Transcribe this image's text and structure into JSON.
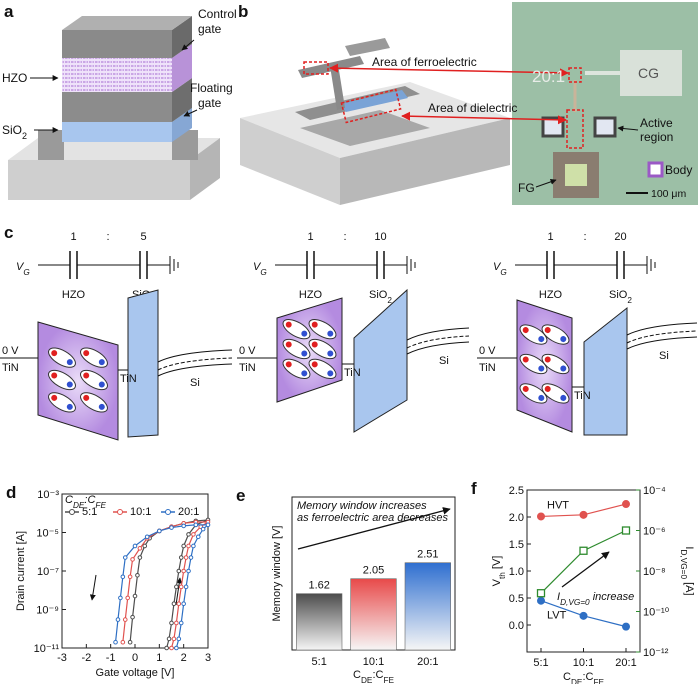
{
  "panels": {
    "a": {
      "letter": "a",
      "control_gate": [
        "Control",
        "gate"
      ],
      "hzo": "HZO",
      "floating_gate": [
        "Floating",
        "gate"
      ],
      "sio2": [
        "SiO",
        "2"
      ]
    },
    "b": {
      "letter": "b",
      "ferroelectric": "Area of ferroelectric",
      "dielectric": "Area of dielectric",
      "ratio": "20:1",
      "cg": "CG",
      "active_region": [
        "Active",
        "region"
      ],
      "body": "Body",
      "fg": "FG",
      "scale_bar": "100 μm"
    },
    "c": {
      "letter": "c",
      "columns": [
        {
          "vg": [
            "V",
            "G"
          ],
          "left": "1",
          "colon": ":",
          "right": "5",
          "hzo": "HZO",
          "sio2": [
            "SiO",
            "2"
          ],
          "zero_v": "0 V",
          "tin_left": "TiN",
          "tin_mid": "TiN",
          "si": "Si"
        },
        {
          "vg": [
            "V",
            "G"
          ],
          "left": "1",
          "colon": ":",
          "right": "10",
          "hzo": "HZO",
          "sio2": [
            "SiO",
            "2"
          ],
          "zero_v": "0 V",
          "tin_left": "TiN",
          "tin_mid": "TiN",
          "si": "Si"
        },
        {
          "vg": [
            "V",
            "G"
          ],
          "left": "1",
          "colon": ":",
          "right": "20",
          "hzo": "HZO",
          "sio2": [
            "SiO",
            "2"
          ],
          "zero_v": "0 V",
          "tin_left": "TiN",
          "tin_mid": "TiN",
          "si": "Si"
        }
      ]
    }
  },
  "chart_data": [
    {
      "type": "line",
      "panel_label": "d",
      "x_label": "Gate voltage [V]",
      "y_label": "Drain current [A]",
      "legend_title": [
        "C",
        "DE",
        ":C",
        "FE"
      ],
      "log_y": true,
      "xlim": [
        -3,
        3
      ],
      "xticks": [
        -3,
        -2,
        -1,
        0,
        1,
        2,
        3
      ],
      "ylim": [
        1e-11,
        0.001
      ],
      "yticks": [
        {
          "value": 1e-11,
          "label": "10⁻¹¹"
        },
        {
          "value": 1e-09,
          "label": "10⁻⁹"
        },
        {
          "value": 1e-07,
          "label": "10⁻⁷"
        },
        {
          "value": 1e-05,
          "label": "10⁻⁵"
        },
        {
          "value": 0.001,
          "label": "10⁻³"
        }
      ],
      "series": [
        {
          "name": "5:1",
          "color": "#4d4d4d",
          "x": [
            1.3,
            1.4,
            1.5,
            1.6,
            1.7,
            1.8,
            1.9,
            2.0,
            2.2,
            2.5,
            3.0,
            2.5,
            2.0,
            1.5,
            1.0,
            0.6,
            0.4,
            0.2,
            0.1,
            0.0,
            -0.1,
            -0.2
          ],
          "values": [
            1e-11,
            3e-11,
            2e-10,
            2e-09,
            1.5e-08,
            1e-07,
            5e-07,
            2e-06,
            8e-06,
            2.5e-05,
            4.5e-05,
            4e-05,
            3e-05,
            2e-05,
            1.2e-05,
            5e-06,
            2e-06,
            5e-07,
            6e-08,
            5e-09,
            4e-10,
            2e-11
          ]
        },
        {
          "name": "10:1",
          "color": "#e0524f",
          "x": [
            1.5,
            1.6,
            1.7,
            1.8,
            1.9,
            2.0,
            2.1,
            2.2,
            2.4,
            2.7,
            3.0,
            2.5,
            2.0,
            1.5,
            1.0,
            0.5,
            0.2,
            -0.1,
            -0.2,
            -0.3,
            -0.4,
            -0.5
          ],
          "values": [
            1e-11,
            3e-11,
            2e-10,
            2e-09,
            1.5e-08,
            1e-07,
            5e-07,
            2e-06,
            8e-06,
            2e-05,
            3.5e-05,
            3.5e-05,
            3e-05,
            2e-05,
            1.2e-05,
            5e-06,
            1.5e-06,
            4e-07,
            5e-08,
            4e-09,
            3e-10,
            2e-11
          ]
        },
        {
          "name": "20:1",
          "color": "#2e6fc4",
          "x": [
            1.7,
            1.8,
            1.9,
            2.0,
            2.1,
            2.2,
            2.3,
            2.4,
            2.6,
            2.8,
            3.0,
            2.5,
            2.0,
            1.5,
            1.0,
            0.5,
            0.0,
            -0.4,
            -0.5,
            -0.6,
            -0.7,
            -0.8
          ],
          "values": [
            1e-11,
            3e-11,
            2e-10,
            2e-09,
            1.5e-08,
            1e-07,
            5e-07,
            2e-06,
            6e-06,
            1.5e-05,
            2.5e-05,
            2.5e-05,
            2.2e-05,
            1.8e-05,
            1.2e-05,
            6e-06,
            2e-06,
            5e-07,
            5e-08,
            4e-09,
            3e-10,
            2e-11
          ]
        }
      ]
    },
    {
      "type": "bar",
      "panel_label": "e",
      "categories": [
        "5:1",
        "10:1",
        "20:1"
      ],
      "values": [
        1.62,
        2.05,
        2.51
      ],
      "colors": [
        "#4d4d4d",
        "#e84a4a",
        "#2f6fd0"
      ],
      "ylim": [
        0,
        4.4
      ],
      "y_label": "Memory window [V]",
      "x_label": [
        "C",
        "DE",
        ":C",
        "FE"
      ],
      "annotation": [
        "Memory window increases",
        "as ferroelectric area decreases"
      ]
    },
    {
      "type": "line",
      "panel_label": "f",
      "categories": [
        "5:1",
        "10:1",
        "20:1"
      ],
      "x_label": [
        "C",
        "DE",
        ":C",
        "FE"
      ],
      "y_label": [
        "V",
        "th",
        " [V]"
      ],
      "y2_label": [
        "I",
        "D,VG=0",
        " [A]"
      ],
      "ylim": [
        -0.5,
        2.5
      ],
      "yticks": [
        {
          "value": 0,
          "label": "0.0"
        },
        0.5,
        {
          "value": 1,
          "label": "1.0"
        },
        1.5,
        {
          "value": 2,
          "label": "2.0"
        },
        2.5
      ],
      "log_y2": true,
      "y2lim": [
        1e-12,
        0.0001
      ],
      "y2ticks": [
        {
          "value": 1e-12,
          "label": "10⁻¹²"
        },
        {
          "value": 1e-10,
          "label": "10⁻¹⁰"
        },
        {
          "value": 1e-08,
          "label": "10⁻⁸"
        },
        {
          "value": 1e-06,
          "label": "10⁻⁶"
        },
        {
          "value": 0.0001,
          "label": "10⁻⁴"
        }
      ],
      "annotation": [
        "I",
        "D,VG=0",
        " increase"
      ],
      "series": [
        {
          "name": "HVT",
          "color": "#e0524f",
          "values": [
            2.01,
            2.04,
            2.24
          ]
        },
        {
          "name": "LVT",
          "color": "#2e6fc4",
          "values": [
            0.45,
            0.17,
            -0.03
          ]
        },
        {
          "color": "#2e8b2e",
          "axis": "y2",
          "values": [
            8e-10,
            1e-07,
            1e-06
          ]
        }
      ]
    }
  ]
}
